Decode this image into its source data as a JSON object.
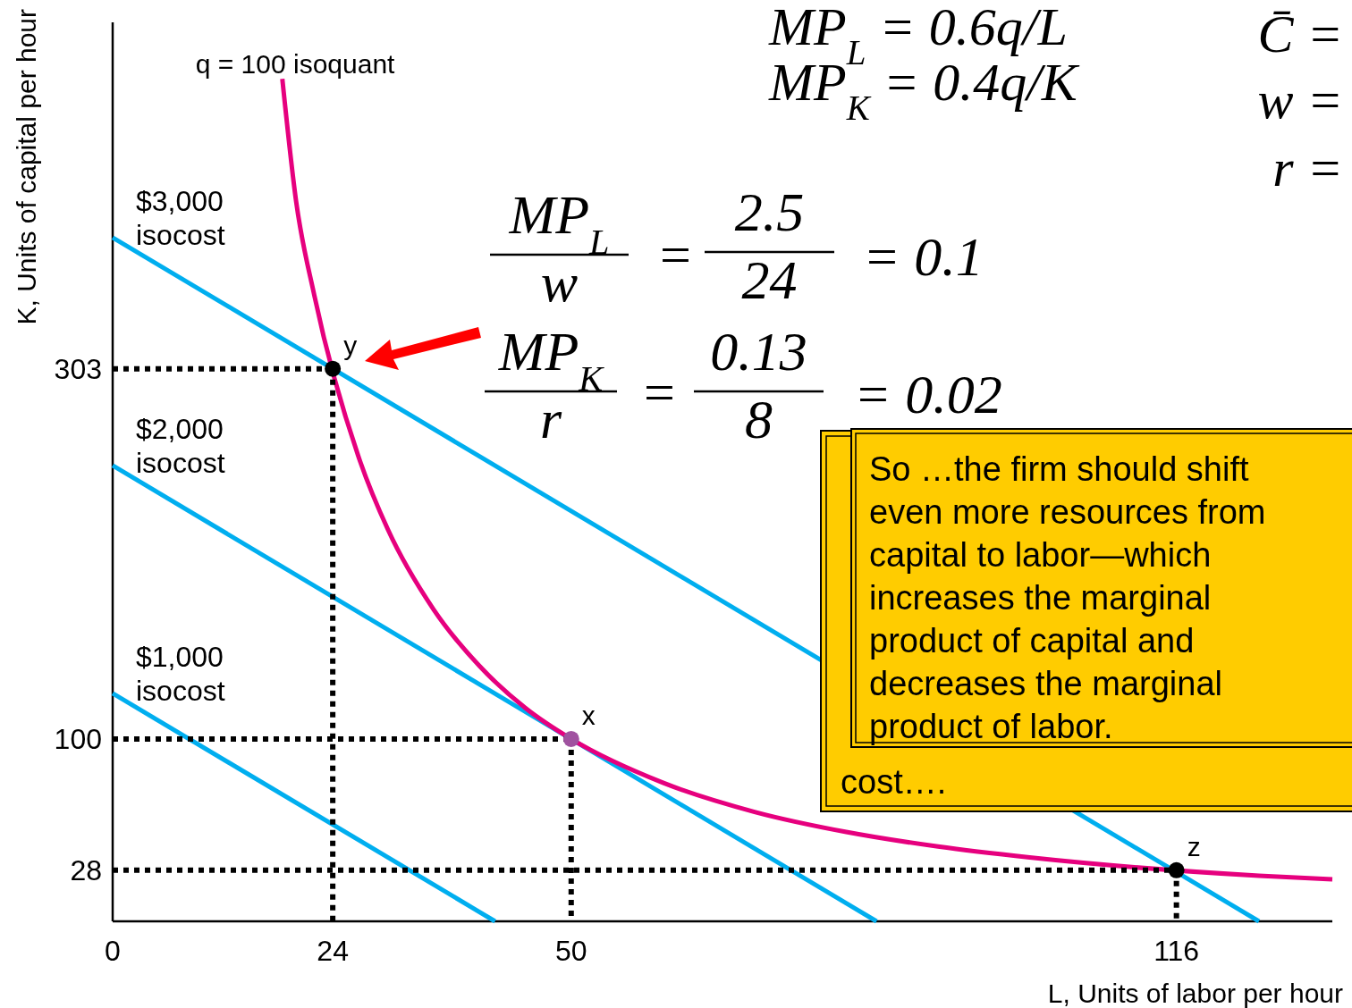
{
  "chart_data": {
    "type": "line",
    "xlabel": "L, Units of labor per hour",
    "ylabel": "K, Units of capital per hour",
    "xlim": [
      0,
      133
    ],
    "ylim": [
      0,
      493
    ],
    "xticks": [
      0,
      24,
      50,
      116
    ],
    "yticks": [
      28,
      100,
      303
    ],
    "grid": false,
    "series": [
      {
        "color": "#00aeef",
        "x": [
          0,
          125
        ],
        "values": [
          375,
          0
        ]
      },
      {
        "color": "#00aeef",
        "x": [
          0,
          83.3
        ],
        "values": [
          250,
          0
        ]
      },
      {
        "color": "#00aeef",
        "x": [
          0,
          41.7
        ],
        "values": [
          125,
          0
        ]
      },
      {
        "color": "#e6007e",
        "x": [
          18.5,
          20,
          22,
          27,
          30,
          35,
          40,
          45,
          50,
          60,
          70,
          80,
          90,
          100,
          125,
          133
        ],
        "values": [
          462,
          395,
          343,
          252,
          215,
          171,
          140,
          117,
          100,
          76,
          60,
          49,
          41,
          35,
          25,
          23
        ]
      },
      {
        "line_style": "dotted",
        "color": "#000000",
        "x": [
          0,
          24
        ],
        "values": [
          303,
          303
        ]
      },
      {
        "line_style": "dotted",
        "color": "#000000",
        "x": [
          24,
          24
        ],
        "values": [
          303,
          0
        ]
      },
      {
        "line_style": "dotted",
        "color": "#000000",
        "x": [
          0,
          50
        ],
        "values": [
          100,
          100
        ]
      },
      {
        "line_style": "dotted",
        "color": "#000000",
        "x": [
          50,
          50
        ],
        "values": [
          100,
          0
        ]
      },
      {
        "line_style": "dotted",
        "color": "#000000",
        "x": [
          0,
          116
        ],
        "values": [
          28,
          28
        ]
      },
      {
        "line_style": "dotted",
        "color": "#000000",
        "x": [
          116,
          116
        ],
        "values": [
          28,
          0
        ]
      },
      {
        "type": "scatter",
        "marker": "circle",
        "x": [
          24,
          50,
          116
        ],
        "values": [
          303,
          100,
          28
        ],
        "colors": [
          "#000000",
          "#a052a0",
          "#000000"
        ]
      }
    ],
    "annotations": [
      "MP$_{L}$ = 0.6q/L",
      "MP$_{K}$ = 0.4q/K",
      "C̄ =",
      "w =",
      "r =",
      "MP$_{L}$",
      "w",
      "=",
      "2.5",
      "24",
      "= 0.1",
      "MP$_{K}$",
      "r",
      "=",
      "0.13",
      "8",
      "= 0.02",
      {
        "text": "q = 100 isoquant",
        "x": 18.5,
        "y": 462
      },
      {
        "text": "$3,000 isocost",
        "x": 0,
        "y": 375
      },
      {
        "text": "$2,000 isocost",
        "x": 0,
        "y": 250
      },
      {
        "text": "$1,000 isocost",
        "x": 0,
        "y": 125
      },
      {
        "text": "y",
        "x": 24,
        "y": 303
      },
      {
        "text": "x",
        "x": 50,
        "y": 100
      },
      {
        "text": "z",
        "x": 116,
        "y": 28
      },
      "cost….",
      "So …the firm should shift even more resources from capital to labor—which increases the marginal product of capital and decreases the marginal product of labor."
    ]
  }
}
